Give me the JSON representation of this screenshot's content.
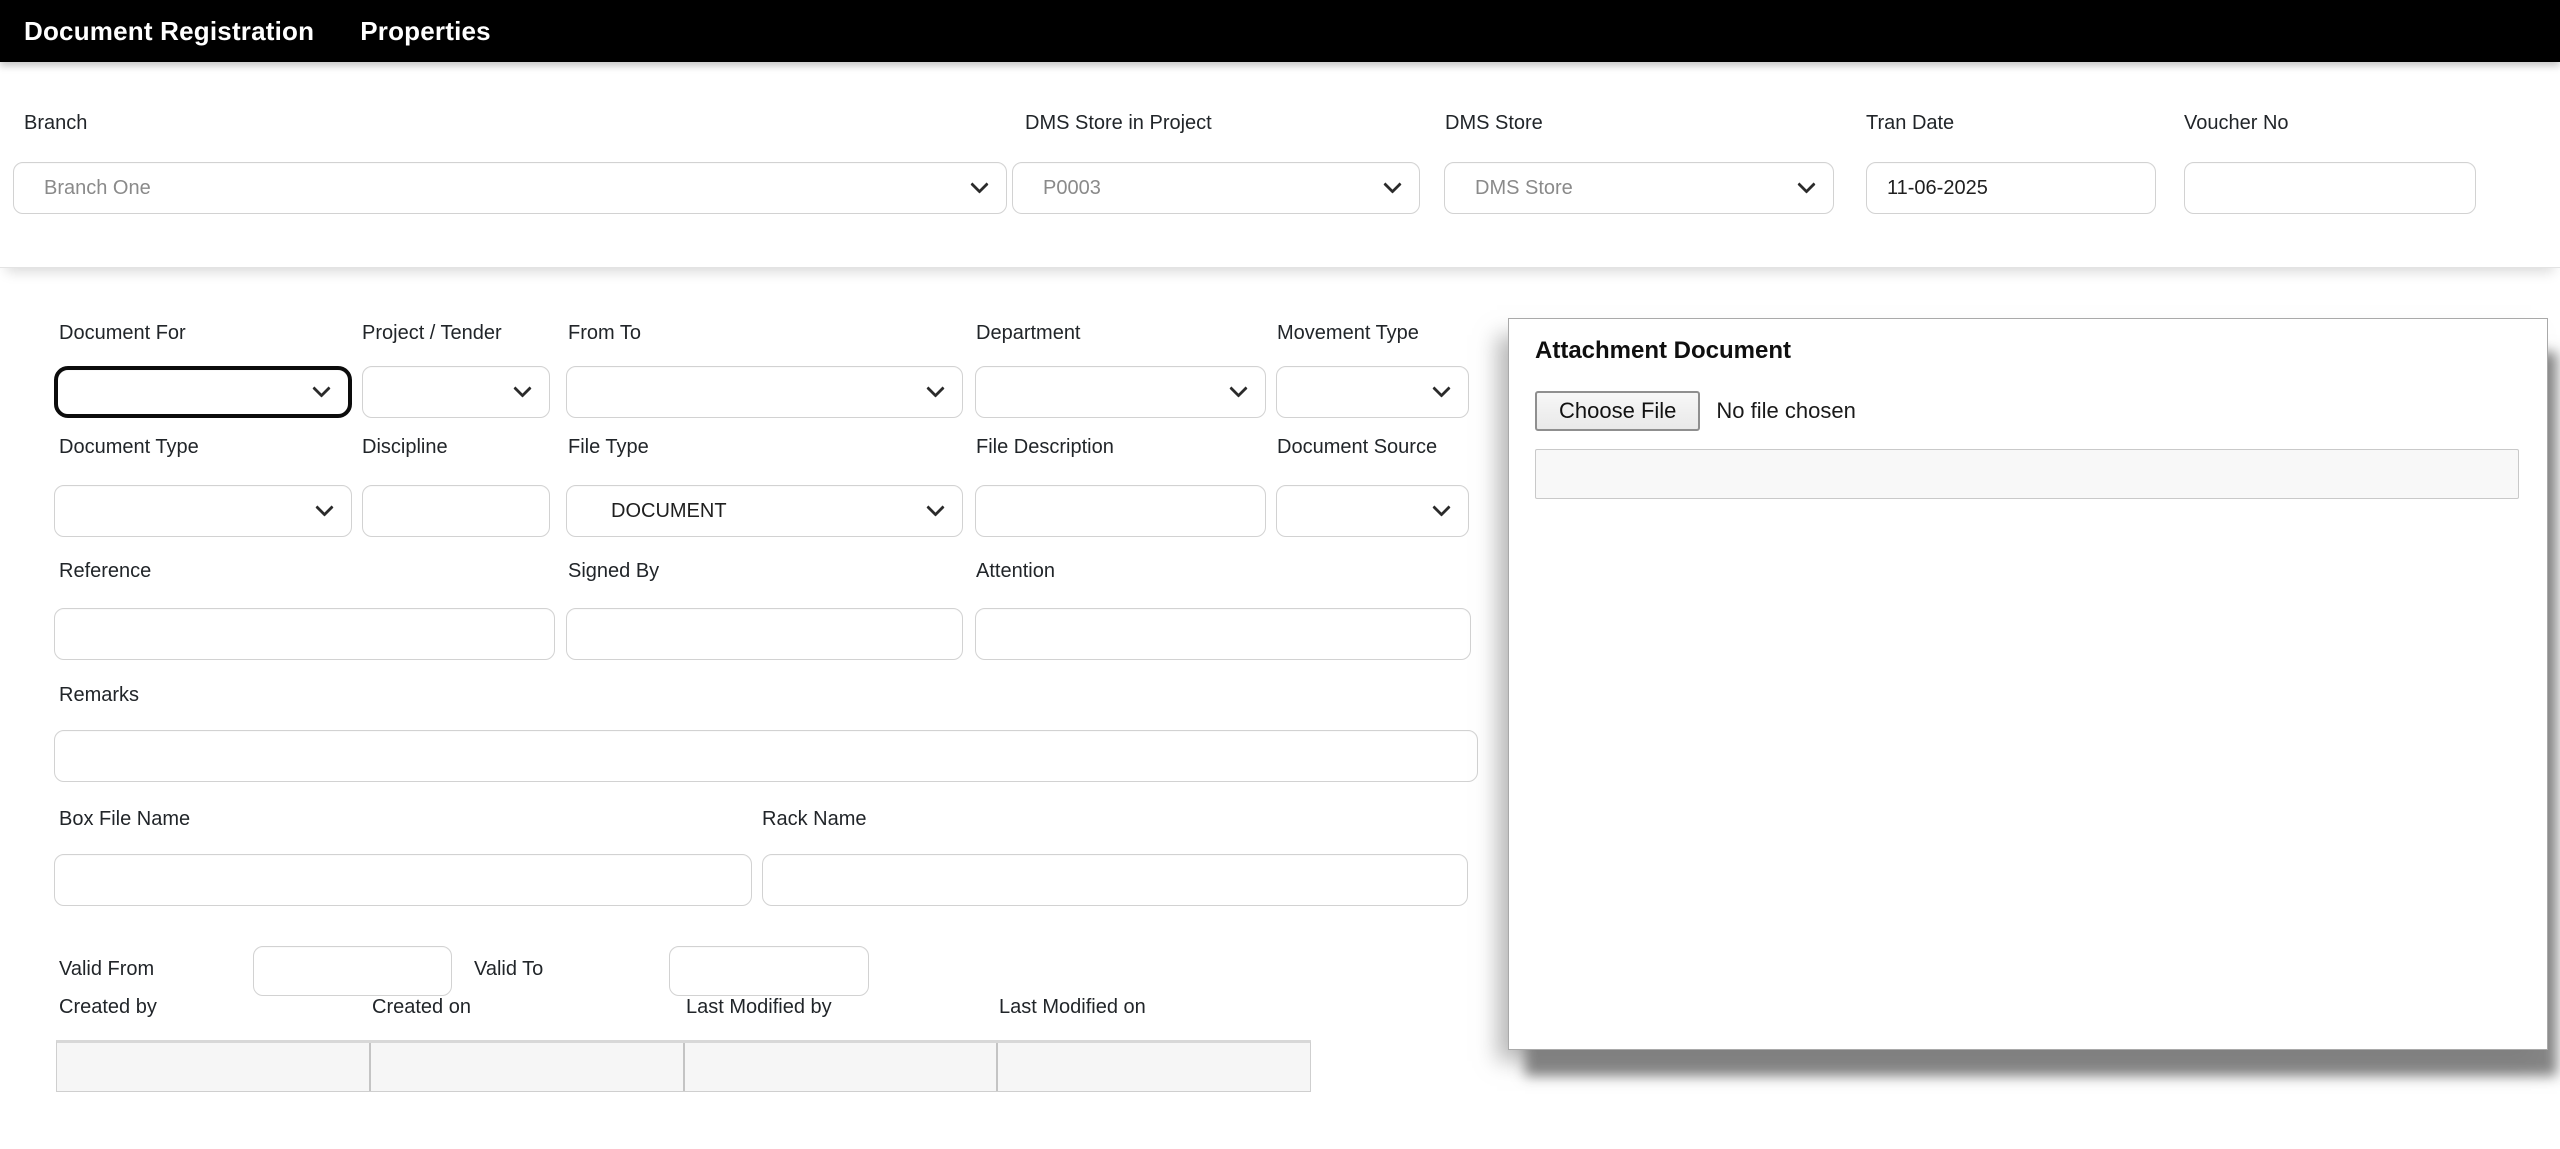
{
  "menu": {
    "items": [
      {
        "label": "Document Registration"
      },
      {
        "label": "Properties"
      }
    ]
  },
  "header": {
    "branch": {
      "label": "Branch",
      "value": "Branch One"
    },
    "dms_store_in_project": {
      "label": "DMS Store in Project",
      "value": "P0003"
    },
    "dms_store": {
      "label": "DMS Store",
      "value": "DMS Store"
    },
    "tran_date": {
      "label": "Tran Date",
      "value": "11-06-2025"
    },
    "voucher_no": {
      "label": "Voucher No",
      "value": ""
    }
  },
  "form": {
    "document_for": {
      "label": "Document For",
      "value": ""
    },
    "project_tender": {
      "label": "Project / Tender",
      "value": ""
    },
    "from_to": {
      "label": "From To",
      "value": ""
    },
    "department": {
      "label": "Department",
      "value": ""
    },
    "movement_type": {
      "label": "Movement Type",
      "value": ""
    },
    "document_type": {
      "label": "Document Type",
      "value": ""
    },
    "discipline": {
      "label": "Discipline",
      "value": ""
    },
    "file_type": {
      "label": "File Type",
      "value": "DOCUMENT"
    },
    "file_description": {
      "label": "File Description",
      "value": ""
    },
    "document_source": {
      "label": "Document Source",
      "value": ""
    },
    "reference": {
      "label": "Reference",
      "value": ""
    },
    "signed_by": {
      "label": "Signed By",
      "value": ""
    },
    "attention": {
      "label": "Attention",
      "value": ""
    },
    "remarks": {
      "label": "Remarks",
      "value": ""
    },
    "box_file_name": {
      "label": "Box File Name",
      "value": ""
    },
    "rack_name": {
      "label": "Rack Name",
      "value": ""
    },
    "valid_from": {
      "label": "Valid From",
      "value": ""
    },
    "valid_to": {
      "label": "Valid To",
      "value": ""
    },
    "audit": {
      "columns": [
        "Created by",
        "Created on",
        "Last Modified by",
        "Last Modified on"
      ],
      "row": [
        "",
        "",
        "",
        ""
      ]
    }
  },
  "attachment": {
    "title": "Attachment Document",
    "choose_file_label": "Choose File",
    "no_file_text": "No file chosen",
    "file_display_value": ""
  },
  "colors": {
    "topbar_bg": "#000000",
    "focus_border": "#0c0c0c",
    "panel_shadow": "#7a7a7a"
  }
}
